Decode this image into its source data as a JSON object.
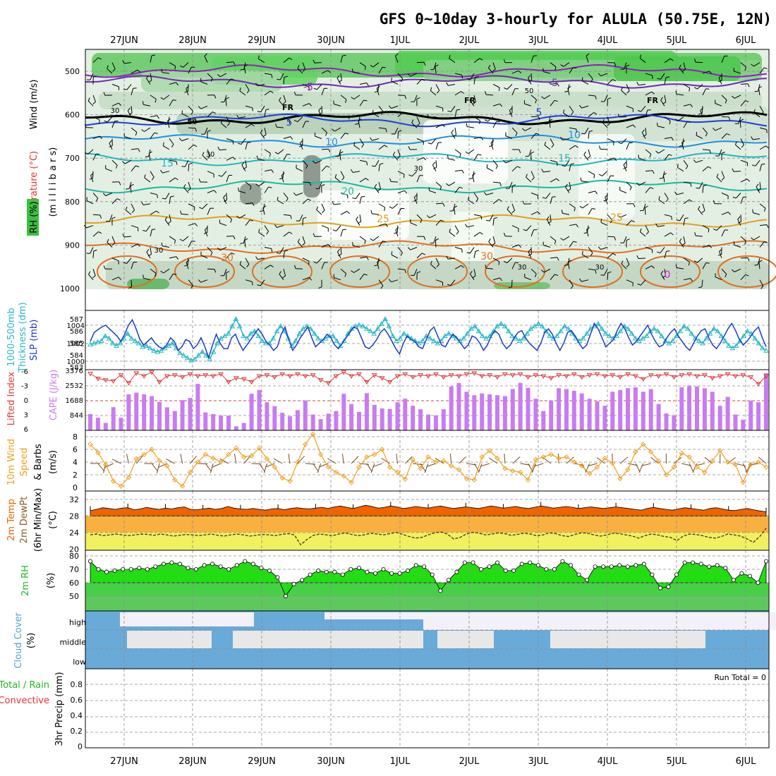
{
  "title": "GFS 0~10day 3-hourly for ALULA (50.75E, 12N)",
  "dates": [
    "27JUN",
    "28JUN",
    "29JUN",
    "30JUN",
    "1JUL",
    "2JUL",
    "3JUL",
    "4JUL",
    "5JUL",
    "6JUL"
  ],
  "colors": {
    "rh_green": "#4cc84c",
    "cape": "#c87cf0",
    "lifted": "#e03c3c",
    "sfc_temp": "#f06400",
    "dewpt_band": "#f0f060",
    "rh2m": "#33dd22",
    "cloud": "#6aaad8",
    "slp": "#1c3cc8",
    "thick": "#2ab8c8",
    "wind": "#f0a020"
  },
  "panels": {
    "upper": {
      "labels": {
        "wind": "Wind (m/s)",
        "temp": "Temperature (°C)",
        "rh": "RH (%)",
        "units": "(m i l l i b a r s)"
      },
      "yticks": [
        "500",
        "600",
        "700",
        "800",
        "900",
        "1000"
      ],
      "isotherms": [
        "-5",
        "-5",
        "5",
        "5",
        "10",
        "10",
        "15",
        "15",
        "20",
        "25",
        "25",
        "30",
        "30",
        "0"
      ],
      "freezing": "FR",
      "rh_labels": [
        "30",
        "50",
        "30",
        "60",
        "30",
        "50",
        "30",
        "30",
        "30"
      ]
    },
    "slp": {
      "labels": {
        "thick": "1000-500mb",
        "thick2": "Thickness (dm)",
        "slp": "SLP (mb)"
      },
      "left_ticks": [
        "587",
        "586",
        "585",
        "584",
        "583"
      ],
      "right_ticks": [
        "1004",
        "1002",
        "1000"
      ]
    },
    "cape": {
      "labels": {
        "li": "Lifted Index",
        "cape": "CAPE (J/kg)"
      },
      "li_ticks": [
        "-6",
        "-3",
        "0",
        "3",
        "6"
      ],
      "cape_ticks": [
        "3376",
        "2532",
        "1688",
        "844"
      ]
    },
    "wind10m": {
      "labels": {
        "a": "10m Wind",
        "b": "Speed",
        "c": "& Barbs",
        "d": "(m/s)"
      },
      "yticks": [
        "8",
        "6",
        "4",
        "2",
        "0"
      ]
    },
    "temp2m": {
      "labels": {
        "a": "2m Temp",
        "b": "2m DewPt",
        "c": "(6hr Min/Max)",
        "d": "(°C)"
      },
      "yticks": [
        "32",
        "28",
        "24",
        "20"
      ]
    },
    "rh2m": {
      "labels": {
        "a": "2m RH",
        "b": "(%)"
      },
      "yticks": [
        "80",
        "70",
        "60",
        "50"
      ]
    },
    "cloud": {
      "labels": {
        "a": "Cloud Cover",
        "b": "(%)"
      },
      "levels": [
        "high",
        "middle",
        "low"
      ]
    },
    "precip": {
      "labels": {
        "a": "Total / Rain",
        "b": "Convective",
        "c": "3hr Precip (mm)"
      },
      "yticks": [
        "0.8",
        "0.6",
        "0.4",
        "0.2",
        "0"
      ],
      "run_total": "Run Total = 0"
    }
  },
  "chart_data": {
    "type": "meteogram",
    "x_start": "26JUN 12Z",
    "x_step_hours": 3,
    "slp_mb": [
      1002.2,
      1003.2,
      1003.5,
      1003.8,
      1004.0,
      1003.6,
      1003.2,
      1002.8,
      1002.2,
      1003.0,
      1004.0,
      1004.6,
      1003.6,
      1002.4,
      1001.8,
      1002.2,
      1002.6,
      1002.0,
      1001.6,
      1001.4,
      1001.8,
      1002.6,
      1002.2,
      1001.2,
      1001.6,
      1002.4,
      1002.2,
      1001.4,
      1001.8,
      1002.6,
      1001.6,
      1000.4,
      1001.8,
      1003.0,
      1002.0,
      1001.4,
      1001.4,
      1002.6,
      1003.0,
      1002.0,
      1001.2,
      1001.8,
      1002.4,
      1003.0,
      1003.6,
      1003.0,
      1002.2,
      1001.8,
      1001.2,
      1001.6,
      1003.0,
      1003.8,
      1002.4,
      1001.2,
      1001.8,
      1002.6,
      1003.2,
      1003.8,
      1002.6,
      1001.6,
      1002.0,
      1002.4,
      1003.0,
      1002.6,
      1001.8,
      1001.4,
      1002.0,
      1002.6,
      1003.2,
      1003.8,
      1003.6,
      1002.6,
      1001.6,
      1001.4,
      1001.8,
      1002.4,
      1003.2,
      1003.6,
      1003.0,
      1002.2,
      1001.4,
      1000.8,
      1002.0,
      1002.8,
      1002.4,
      1002.2,
      1001.6,
      1001.4,
      1002.4,
      1003.4,
      1003.8,
      1002.8,
      1001.8,
      1001.6,
      1002.4,
      1003.0,
      1002.6,
      1002.0,
      1001.4,
      1001.8,
      1002.8,
      1002.6,
      1002.0,
      1001.2,
      1001.8,
      1002.8,
      1003.4,
      1003.0,
      1002.0,
      1001.4,
      1001.8,
      1002.6,
      1003.2,
      1003.4,
      1002.6,
      1002.0,
      1001.6,
      1001.2,
      1002.0,
      1003.2,
      1003.6,
      1003.0,
      1002.0,
      1001.2,
      1002.0,
      1003.2,
      1003.4,
      1002.8,
      1002.0,
      1001.4,
      1001.8,
      1003.0,
      1004.2,
      1003.6,
      1002.6,
      1001.6,
      1002.0,
      1002.4,
      1003.4,
      1004.2,
      1003.6,
      1002.6,
      1001.8,
      1002.2,
      1002.8,
      1003.4,
      1004.0,
      1003.0,
      1002.2,
      1001.6,
      1001.8,
      1002.6,
      1003.2,
      1003.6,
      1002.8,
      1002.2,
      1001.6,
      1001.2,
      1002.0,
      1002.8,
      1003.4,
      1003.6,
      1002.6,
      1001.8,
      1001.4,
      1002.0,
      1002.8,
      1003.6,
      1004.2,
      1003.4,
      1002.4,
      1001.8,
      1002.2,
      1002.8,
      1003.4,
      1003.8,
      1002.6,
      1001.6
    ],
    "thickness_dm": [
      584.9,
      585.0,
      585.1,
      585.2,
      585.6,
      585.4,
      585.0,
      584.8,
      585.0,
      585.4,
      585.8,
      585.4,
      585.2,
      585.0,
      584.7,
      584.8,
      584.6,
      584.4,
      584.3,
      584.4,
      584.6,
      584.8,
      585.0,
      584.6,
      584.2,
      584.0,
      583.8,
      583.6,
      583.7,
      584.0,
      584.3,
      584.0,
      583.7,
      584.3,
      585.0,
      585.4,
      585.6,
      585.8,
      586.4,
      587.0,
      586.4,
      585.6,
      585.4,
      585.8,
      586.0,
      585.6,
      585.2,
      585.0,
      585.0,
      585.4,
      586.0,
      586.4,
      586.0,
      585.4,
      584.8,
      585.2,
      585.8,
      586.2,
      586.4,
      586.2,
      585.8,
      585.4,
      585.2,
      585.4,
      585.6,
      585.6,
      585.2,
      584.8,
      585.2,
      585.8,
      586.2,
      586.4,
      586.5,
      586.4,
      586.2,
      586.0,
      585.8,
      586.2,
      586.6,
      587.0,
      586.4,
      585.6,
      585.2,
      585.4,
      585.8,
      585.6,
      585.4,
      585.2,
      585.0,
      585.2,
      585.6,
      585.4,
      585.2,
      585.0,
      585.2,
      585.6,
      585.8,
      585.6,
      585.4,
      585.2,
      585.4,
      585.8,
      586.2,
      586.4,
      586.0,
      585.6,
      585.4,
      585.6,
      586.0,
      586.4,
      586.6,
      586.4,
      586.0,
      585.6,
      585.4,
      585.2,
      585.4,
      585.8,
      586.2,
      586.4,
      586.6,
      586.4,
      586.0,
      585.6,
      585.4,
      585.6,
      586.0,
      586.4,
      586.2,
      585.8,
      585.4,
      585.2,
      585.4,
      585.8,
      586.2,
      586.4,
      586.6,
      586.2,
      585.8,
      585.6,
      585.4,
      585.6,
      586.0,
      586.4,
      586.2,
      585.8,
      585.4,
      585.2,
      585.4,
      585.6,
      586.0,
      586.2,
      586.0,
      585.6,
      585.2,
      585.0,
      585.2,
      585.6,
      586.0,
      586.4,
      586.2,
      585.8,
      585.4,
      585.2,
      585.0,
      585.4,
      585.8,
      586.2,
      586.0,
      585.6,
      585.2,
      584.8,
      584.6,
      584.8,
      585.2,
      585.6,
      586.0,
      585.8,
      585.4,
      585.0,
      584.6,
      584.4
    ],
    "cape_jkg": [
      920,
      720,
      420,
      1320,
      720,
      2050,
      2150,
      2050,
      1950,
      1620,
      1310,
      1100,
      1720,
      1850,
      2650,
      1020,
      930,
      850,
      830,
      230,
      420,
      2080,
      2300,
      1600,
      1380,
      1000,
      800,
      1150,
      1700,
      900,
      640,
      950,
      1100,
      2080,
      1500,
      1050,
      2120,
      1450,
      1250,
      1220,
      1600,
      1800,
      1400,
      1200,
      900,
      850,
      1200,
      2500,
      2700,
      2200,
      2000,
      2100,
      2050,
      2000,
      1950,
      2350,
      2700,
      2420,
      1800,
      1100,
      1700,
      2400,
      2350,
      2250,
      2100,
      1800,
      1650,
      1400,
      2200,
      2300,
      2400,
      2450,
      2200,
      2350,
      1500,
      960,
      860,
      2450,
      2550,
      2500,
      2400,
      2200,
      1400,
      1900,
      900,
      600,
      1700,
      1600,
      3250
    ],
    "lifted_index": [
      -5.5,
      -4.5,
      -4.2,
      -4.0,
      -5.2,
      -3.6,
      -5.6,
      -5.0,
      -5.8,
      -3.8,
      -5.0,
      -5.2,
      -4.8,
      -5.4,
      -5.0,
      -5.2,
      -5.0,
      -5.4,
      -3.8,
      -4.6,
      -4.4,
      -3.8,
      -5.0,
      -5.2,
      -4.8,
      -5.4,
      -5.0,
      -5.4,
      -5.0,
      -5.2,
      -4.2,
      -3.6,
      -5.0,
      -5.8,
      -5.0,
      -5.4,
      -3.8,
      -5.2,
      -4.6,
      -3.8,
      -5.0,
      -5.4,
      -4.8,
      -5.2,
      -5.0,
      -5.4,
      -4.8,
      -5.2,
      -5.0,
      -5.4,
      -5.6,
      -5.0,
      -5.2,
      -4.8,
      -5.4,
      -5.2,
      -5.4,
      -4.8,
      -5.2,
      -5.0,
      -4.6,
      -5.2,
      -5.0,
      -5.4,
      -4.8,
      -5.2,
      -5.4,
      -5.0,
      -5.2,
      -4.8,
      -5.4,
      -5.0,
      -4.4,
      -5.2,
      -5.0,
      -5.4,
      -4.8,
      -5.2,
      -5.4,
      -5.0,
      -5.2,
      -4.6,
      -5.0,
      -5.4,
      -5.0,
      -5.2,
      -4.8,
      -3.4,
      -5.0
    ],
    "wind10m_ms": [
      6.8,
      5.5,
      3.6,
      1.0,
      0.2,
      1.6,
      4.5,
      5.2,
      6.0,
      4.2,
      3.4,
      1.2,
      0.2,
      2.4,
      4.0,
      5.2,
      4.6,
      4.0,
      5.2,
      6.2,
      4.8,
      5.0,
      6.2,
      4.5,
      3.2,
      1.5,
      1.0,
      4.0,
      6.8,
      8.4,
      5.2,
      3.2,
      2.4,
      1.8,
      0.8,
      3.2,
      4.8,
      5.2,
      6.0,
      3.2,
      2.4,
      1.3,
      4.4,
      3.0,
      4.8,
      4.0,
      4.2,
      3.4,
      2.8,
      1.4,
      1.2,
      4.8,
      5.8,
      4.6,
      3.0,
      2.6,
      2.4,
      1.2,
      4.4,
      4.8,
      5.2,
      4.6,
      4.8,
      4.0,
      3.4,
      2.2,
      3.2,
      4.6,
      3.8,
      1.4,
      2.8,
      5.6,
      6.8,
      5.6,
      4.2,
      2.0,
      3.2,
      5.4,
      4.8,
      3.2,
      2.4,
      4.2,
      5.8,
      4.0,
      3.6,
      0.8,
      3.6,
      4.0,
      3.2
    ],
    "temp2m_c": [
      29.3,
      29.6,
      30.0,
      29.8,
      29.6,
      29.9,
      30.0,
      29.5,
      29.7,
      30.1,
      29.8,
      29.6,
      29.9,
      29.7,
      30.0,
      30.2,
      29.6,
      29.5,
      29.7,
      29.9,
      29.6,
      29.8,
      30.3,
      29.9,
      29.7,
      29.6,
      29.8,
      29.6,
      29.4,
      29.7,
      29.8,
      29.5,
      29.8,
      30.0,
      29.8,
      29.7,
      29.9,
      30.1,
      29.8,
      30.2,
      30.4,
      30.1,
      29.8,
      30.2,
      30.6,
      30.3,
      29.9,
      30.1,
      30.4,
      30.2,
      29.8,
      30.0,
      30.3,
      30.1,
      29.9,
      30.2,
      30.4,
      30.1,
      29.8,
      30.0,
      30.2,
      30.0,
      29.8,
      30.1,
      30.4,
      30.2,
      29.9,
      30.1,
      30.3,
      30.0,
      29.8,
      30.1,
      30.4,
      30.2,
      29.9,
      30.1,
      30.3,
      30.1,
      29.8,
      30.0,
      30.2,
      30.0,
      29.8,
      30.0,
      30.2,
      30.0,
      29.8,
      29.6,
      29.4,
      29.8,
      30.1,
      29.8,
      29.6,
      29.4,
      29.7,
      30.0,
      29.8,
      29.6,
      29.4,
      29.8,
      30.0,
      29.7,
      29.4,
      29.3,
      29.6,
      29.8,
      29.5,
      29.2,
      29.0
    ],
    "dewpt2m_c": [
      23.4,
      23.6,
      23.2,
      23.4,
      23.6,
      23.4,
      23.2,
      23.4,
      23.6,
      23.5,
      23.3,
      23.6,
      23.4,
      23.1,
      23.3,
      23.5,
      23.4,
      23.2,
      23.4,
      23.6,
      23.3,
      23.1,
      23.4,
      23.6,
      23.4,
      23.1,
      23.3,
      23.5,
      23.4,
      23.2,
      23.5,
      23.7,
      23.4,
      21.0,
      22.3,
      23.3,
      23.6,
      23.4,
      23.2,
      23.6,
      23.9,
      23.5,
      23.2,
      23.4,
      23.8,
      23.6,
      23.4,
      23.7,
      24.0,
      23.5,
      23.0,
      22.6,
      22.8,
      23.4,
      23.9,
      24.1,
      23.6,
      22.4,
      22.8,
      23.6,
      24.0,
      23.8,
      23.4,
      23.6,
      23.9,
      23.7,
      23.3,
      23.5,
      23.8,
      23.6,
      23.2,
      23.4,
      23.9,
      23.7,
      23.2,
      23.0,
      23.5,
      23.9,
      23.8,
      23.4,
      23.1,
      23.4,
      23.8,
      23.7,
      23.4,
      23.1,
      22.6,
      23.2,
      23.6,
      23.4,
      23.0,
      22.8,
      22.0,
      23.1,
      23.6,
      23.5,
      23.2,
      22.8,
      22.6,
      23.0,
      23.6,
      23.4,
      23.1,
      22.4,
      21.6,
      23.0,
      25.0
    ],
    "rh2m_pct": [
      76,
      70,
      68,
      69,
      70,
      70,
      71,
      70,
      72,
      74,
      75,
      74,
      71,
      70,
      73,
      74,
      72,
      70,
      73,
      76,
      74,
      71,
      69,
      64,
      50,
      59,
      62,
      66,
      69,
      68,
      68,
      66,
      70,
      71,
      68,
      67,
      70,
      67,
      67,
      69,
      73,
      72,
      66,
      54,
      62,
      68,
      75,
      75,
      70,
      72,
      75,
      69,
      69,
      74,
      75,
      73,
      70,
      70,
      76,
      73,
      66,
      62,
      72,
      72,
      72,
      73,
      72,
      73,
      74,
      66,
      56,
      57,
      66,
      75,
      75,
      74,
      72,
      73,
      71,
      62,
      67,
      65,
      60,
      76
    ]
  }
}
